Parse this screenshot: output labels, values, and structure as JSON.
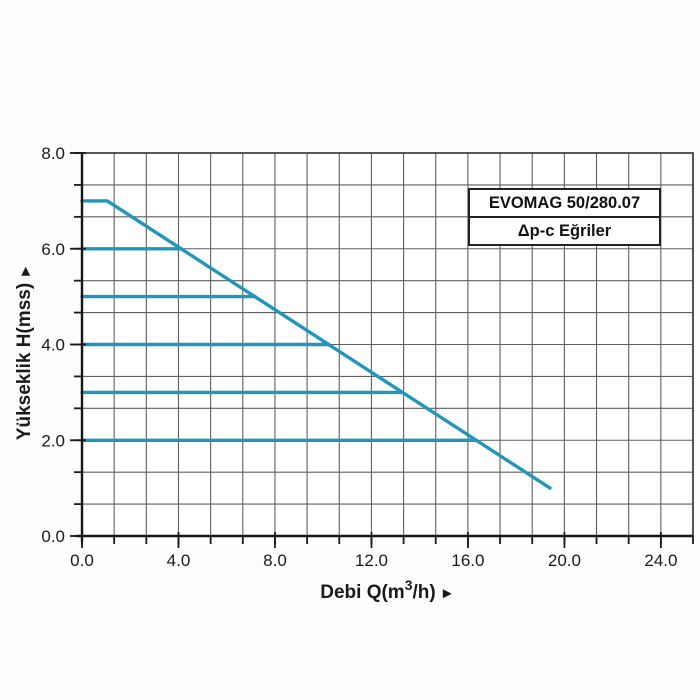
{
  "page": {
    "background": "#fdfdfd",
    "plot_background": "#ffffff"
  },
  "colors": {
    "curve": "#2196bd",
    "grid": "#5f5f5f",
    "plot_border": "#2e2e2e",
    "axis": "#151515",
    "tick": "#1a1a1a",
    "text": "#1a1a1a",
    "legend_border": "#222222",
    "legend_bg": "#ffffff"
  },
  "legend": {
    "model": "EVOMAG 50/280.07",
    "mode": "Δp-c Eğriler"
  },
  "chart_data": {
    "type": "line",
    "title": "",
    "xlabel": "Debi Q(m³/h) ►",
    "xlabel_parts": {
      "pre": "Debi Q(m",
      "sup": "3",
      "post": "/h)",
      "arrow": "►"
    },
    "ylabel": "Yükseklik H(mss) ►",
    "ylabel_parts": {
      "text": "Yükseklik H(mss)",
      "arrow": "►"
    },
    "xlim": [
      0,
      25.33
    ],
    "ylim": [
      0,
      8
    ],
    "x_ticks": [
      0,
      4,
      8,
      12,
      16,
      20,
      24
    ],
    "x_tick_labels": [
      "0.0",
      "4.0",
      "8.0",
      "12.0",
      "16.0",
      "20.0",
      "24.0"
    ],
    "y_ticks": [
      0,
      2,
      4,
      6,
      8
    ],
    "y_tick_labels": [
      "0.0",
      "2.0",
      "4.0",
      "6.0",
      "8.0"
    ],
    "grid": {
      "cols": 19,
      "rows": 12,
      "x_step": 1.3333,
      "y_step": 0.6667,
      "on": true
    },
    "legend_position": "top-right",
    "series": [
      {
        "name": "pump-max-speed-curve",
        "points": [
          [
            0,
            7.0
          ],
          [
            1.05,
            7.0
          ],
          [
            19.4,
            1.0
          ]
        ]
      },
      {
        "name": "dp-c-curve-h6",
        "points": [
          [
            0,
            6.0
          ],
          [
            4.11,
            6.0
          ]
        ]
      },
      {
        "name": "dp-c-curve-h5",
        "points": [
          [
            0,
            5.0
          ],
          [
            7.17,
            5.0
          ]
        ]
      },
      {
        "name": "dp-c-curve-h4",
        "points": [
          [
            0,
            4.0
          ],
          [
            10.23,
            4.0
          ]
        ]
      },
      {
        "name": "dp-c-curve-h3",
        "points": [
          [
            0,
            3.0
          ],
          [
            13.29,
            3.0
          ]
        ]
      },
      {
        "name": "dp-c-curve-h2",
        "points": [
          [
            0,
            2.0
          ],
          [
            16.35,
            2.0
          ]
        ]
      }
    ]
  }
}
